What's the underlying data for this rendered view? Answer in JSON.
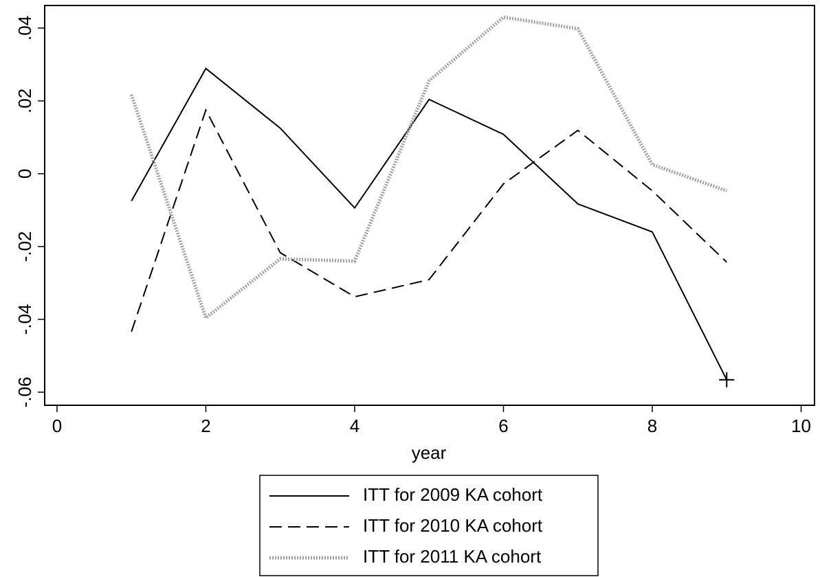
{
  "chart_data": {
    "type": "line",
    "x_label": "year",
    "x": [
      1,
      2,
      3,
      4,
      5,
      6,
      7,
      8,
      9
    ],
    "series": [
      {
        "name": "ITT for 2009 KA cohort",
        "color": "#000000",
        "dash": "solid",
        "end_marker": "plus",
        "values": [
          -0.0075,
          0.0289,
          0.0125,
          -0.0094,
          0.0204,
          0.0108,
          -0.0083,
          -0.016,
          -0.0566
        ]
      },
      {
        "name": "ITT for 2010 KA cohort",
        "color": "#000000",
        "dash": "dashed",
        "values": [
          -0.0434,
          0.0175,
          -0.0217,
          -0.0338,
          -0.0291,
          -0.0028,
          0.0119,
          -0.0047,
          -0.0243
        ]
      },
      {
        "name": "ITT for 2011 KA cohort",
        "color": "#a0a0a0",
        "dash": "dotted",
        "values": [
          0.0217,
          -0.0396,
          -0.0234,
          -0.024,
          0.0255,
          0.043,
          0.0398,
          0.0025,
          -0.0047
        ]
      }
    ],
    "xlim": [
      -0.166,
      10.18
    ],
    "xticks": [
      0,
      2,
      4,
      6,
      8,
      10
    ],
    "ylim": [
      -0.0636,
      0.0462
    ],
    "yticks": [
      {
        "value": -0.06,
        "label": "-.06"
      },
      {
        "value": -0.04,
        "label": "-.04"
      },
      {
        "value": -0.02,
        "label": "-.02"
      },
      0,
      {
        "value": 0.02,
        "label": ".02"
      },
      {
        "value": 0.04,
        "label": ".04"
      }
    ],
    "grid": false,
    "legend": "bottom"
  }
}
